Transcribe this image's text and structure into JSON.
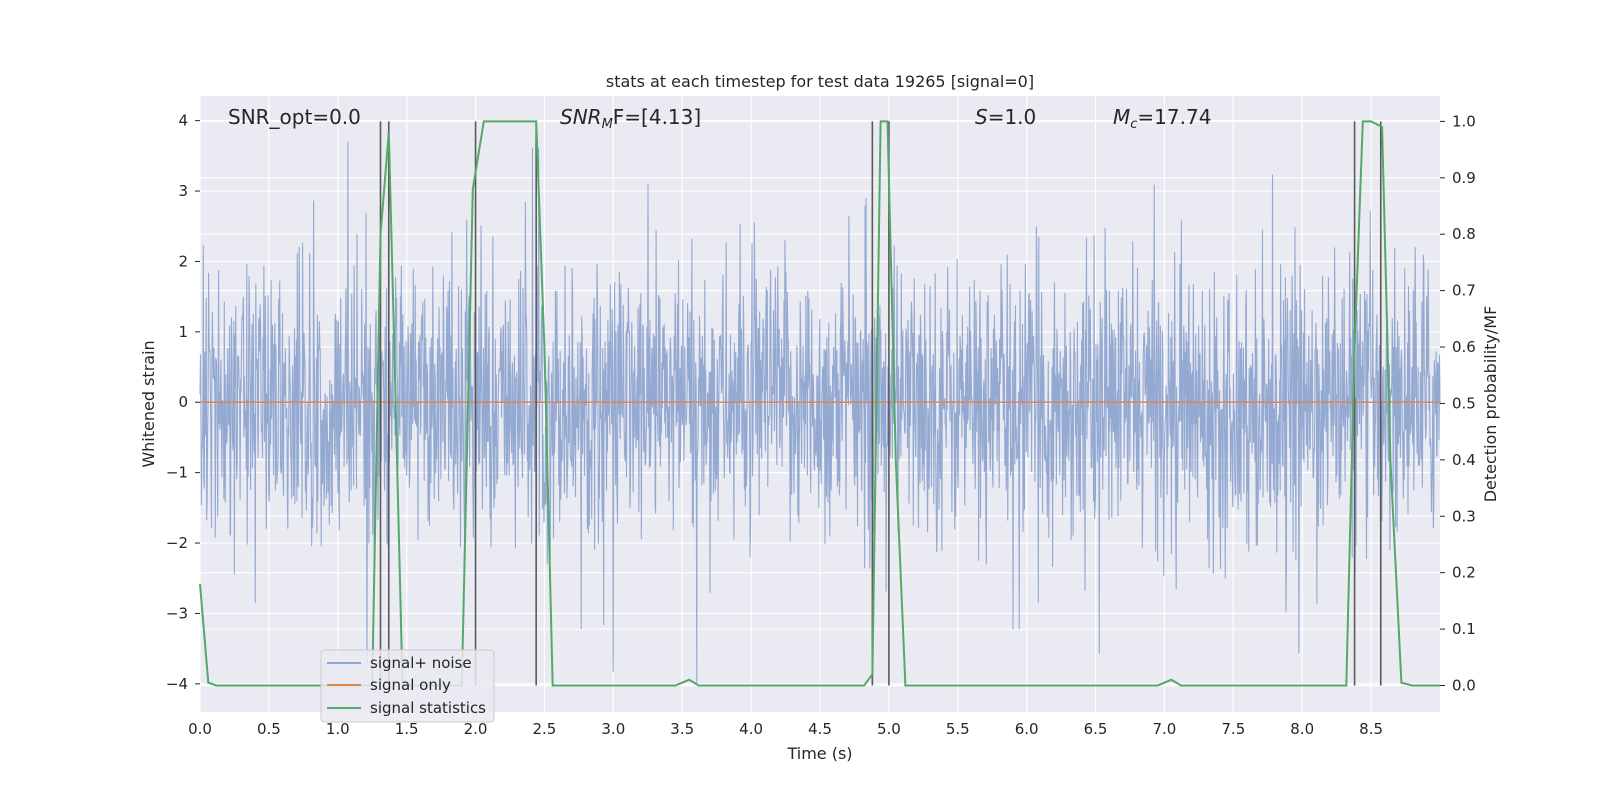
{
  "chart_data": {
    "type": "line",
    "title": "stats at each timestep for test data 19265 [signal=0]",
    "xlabel": "Time (s)",
    "ylabel": "Whitened strain",
    "ylabel_right": "Detection probability/MF",
    "xlim": [
      0.0,
      9.0
    ],
    "ylim": [
      -4.4,
      4.35
    ],
    "ylim_right": [
      -0.047,
      1.045
    ],
    "x_ticks": [
      0.0,
      0.5,
      1.0,
      1.5,
      2.0,
      2.5,
      3.0,
      3.5,
      4.0,
      4.5,
      5.0,
      5.5,
      6.0,
      6.5,
      7.0,
      7.5,
      8.0,
      8.5
    ],
    "x_tick_labels": [
      "0.0",
      "0.5",
      "1.0",
      "1.5",
      "2.0",
      "2.5",
      "3.0",
      "3.5",
      "4.0",
      "4.5",
      "5.0",
      "5.5",
      "6.0",
      "6.5",
      "7.0",
      "7.5",
      "8.0",
      "8.5"
    ],
    "y_ticks": [
      -4,
      -3,
      -2,
      -1,
      0,
      1,
      2,
      3,
      4
    ],
    "y_tick_labels": [
      "−4",
      "−3",
      "−2",
      "−1",
      "0",
      "1",
      "2",
      "3",
      "4"
    ],
    "y_right_ticks": [
      0.0,
      0.1,
      0.2,
      0.3,
      0.4,
      0.5,
      0.6,
      0.7,
      0.8,
      0.9,
      1.0
    ],
    "y_right_tick_labels": [
      "0.0",
      "0.1",
      "0.2",
      "0.3",
      "0.4",
      "0.5",
      "0.6",
      "0.7",
      "0.8",
      "0.9",
      "1.0"
    ],
    "grid": true,
    "annotations": {
      "snr_opt": "SNR_opt=0.0",
      "snr_mf_main": "SNR",
      "snr_mf_sub": "M",
      "snr_mf_rest": "F=[4.13]",
      "s_main": "S",
      "s_rest": "=1.0",
      "mc_main": "M",
      "mc_sub": "c",
      "mc_rest": "=17.74"
    },
    "vertical_lines_x": [
      1.31,
      1.37,
      2.0,
      2.44,
      4.88,
      5.0,
      8.38,
      8.57
    ],
    "series": [
      {
        "name": "signal+ noise",
        "axis": "left",
        "color": "#8fa5cf",
        "kind": "noise",
        "envelope_approx": {
          "upper_typical": 1.6,
          "lower_typical": -1.6,
          "max": 3.7,
          "min": -4.0
        }
      },
      {
        "name": "signal only",
        "axis": "left",
        "color": "#dd8452",
        "x": [
          0.0,
          9.0
        ],
        "values": [
          0.0,
          0.0
        ]
      },
      {
        "name": "signal statistics",
        "axis": "right",
        "color": "#55a868",
        "x": [
          0.0,
          0.06,
          0.12,
          1.25,
          1.31,
          1.37,
          1.41,
          1.47,
          1.9,
          1.98,
          2.06,
          2.44,
          2.5,
          2.56,
          3.45,
          3.55,
          3.62,
          4.82,
          4.88,
          4.94,
          4.99,
          5.05,
          5.12,
          6.95,
          7.05,
          7.12,
          8.32,
          8.38,
          8.44,
          8.5,
          8.58,
          8.64,
          8.72,
          8.8,
          9.0
        ],
        "values": [
          0.18,
          0.005,
          0.0,
          0.0,
          0.8,
          0.98,
          0.6,
          0.0,
          0.0,
          0.88,
          1.0,
          1.0,
          0.6,
          0.0,
          0.0,
          0.01,
          0.0,
          0.0,
          0.02,
          1.0,
          1.0,
          0.4,
          0.0,
          0.0,
          0.01,
          0.0,
          0.0,
          0.6,
          1.0,
          1.0,
          0.99,
          0.4,
          0.005,
          0.0,
          0.0
        ]
      }
    ],
    "legend_position": "lower-left",
    "colors": {
      "axes_bg": "#eaeaf2",
      "grid": "#ffffff",
      "vline": "#5a5a5a",
      "text": "#262626"
    }
  }
}
